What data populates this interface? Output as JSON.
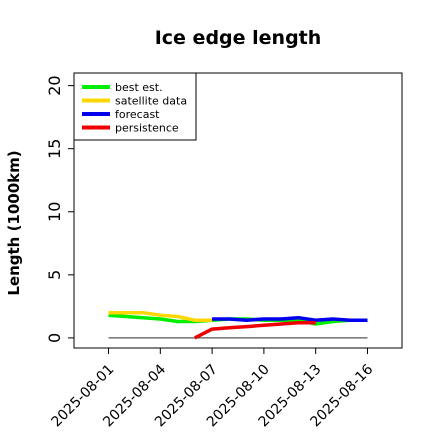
{
  "chart_data": {
    "type": "line",
    "title": "Ice edge length",
    "xlabel": "",
    "ylabel": "Length (1000km)",
    "x_range": [
      "2025-07-30",
      "2025-08-18"
    ],
    "ylim": [
      -0.8,
      21
    ],
    "yticks": [
      0,
      5,
      10,
      15,
      20
    ],
    "xticks": [
      "2025-08-01",
      "2025-08-04",
      "2025-08-07",
      "2025-08-10",
      "2025-08-13",
      "2025-08-16"
    ],
    "highlighted_xtick": "2025-08-07",
    "highlight_color": "#228b22",
    "grid": false,
    "legend_position": "upper-left",
    "reference_line": {
      "y": 0,
      "x_start": "2025-08-01",
      "x_end": "2025-08-16",
      "color": "#555555"
    },
    "series": [
      {
        "name": "best est.",
        "color": "#00ee00",
        "x": [
          "2025-08-01",
          "2025-08-02",
          "2025-08-03",
          "2025-08-04",
          "2025-08-05",
          "2025-08-06",
          "2025-08-07",
          "2025-08-08",
          "2025-08-09",
          "2025-08-10",
          "2025-08-11",
          "2025-08-12",
          "2025-08-13",
          "2025-08-14",
          "2025-08-15",
          "2025-08-16"
        ],
        "values": [
          1.8,
          1.7,
          1.6,
          1.5,
          1.3,
          1.3,
          1.4,
          1.5,
          1.5,
          1.4,
          1.4,
          1.4,
          1.1,
          1.3,
          1.4,
          1.4
        ]
      },
      {
        "name": "satellite data",
        "color": "#ffd700",
        "x": [
          "2025-08-01",
          "2025-08-02",
          "2025-08-03",
          "2025-08-04",
          "2025-08-05",
          "2025-08-06",
          "2025-08-07"
        ],
        "values": [
          2.0,
          2.0,
          2.0,
          1.8,
          1.7,
          1.4,
          1.4
        ]
      },
      {
        "name": "forecast",
        "color": "#0000ee",
        "x": [
          "2025-08-07",
          "2025-08-08",
          "2025-08-09",
          "2025-08-10",
          "2025-08-11",
          "2025-08-12",
          "2025-08-13",
          "2025-08-14",
          "2025-08-15",
          "2025-08-16"
        ],
        "values": [
          1.5,
          1.5,
          1.4,
          1.5,
          1.5,
          1.6,
          1.4,
          1.5,
          1.4,
          1.4
        ]
      },
      {
        "name": "persistence",
        "color": "#ee0000",
        "x": [
          "2025-08-06",
          "2025-08-07",
          "2025-08-08",
          "2025-08-09",
          "2025-08-10",
          "2025-08-11",
          "2025-08-12",
          "2025-08-13"
        ],
        "values": [
          0.0,
          0.7,
          0.8,
          0.9,
          1.0,
          1.1,
          1.2,
          1.2
        ]
      }
    ]
  }
}
